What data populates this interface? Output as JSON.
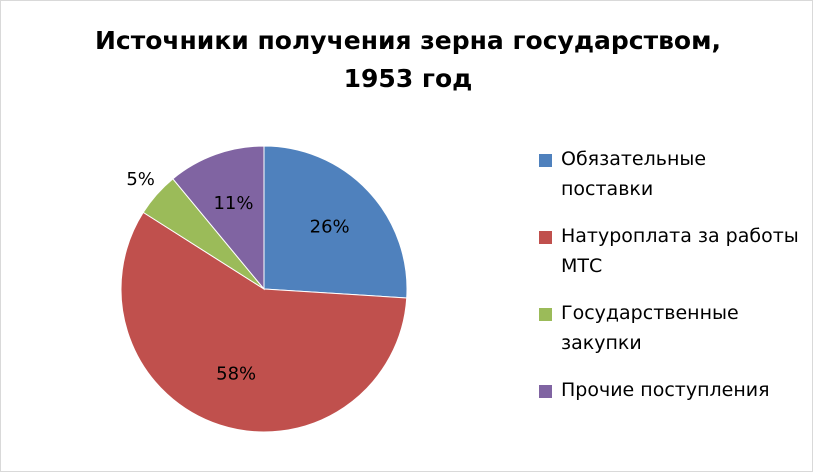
{
  "chart_data": {
    "type": "pie",
    "title": [
      "Источники получения зерна государством,",
      "1953 год"
    ],
    "categories": [
      "Обязательные поставки",
      "Натуроплата за работы МТС",
      "Государственные закупки",
      "Прочие поступления"
    ],
    "values": [
      26,
      58,
      5,
      11
    ],
    "value_labels": [
      "26%",
      "58%",
      "5%",
      "11%"
    ],
    "colors": [
      "#4f81bd",
      "#c0504d",
      "#9bbb59",
      "#8064a2"
    ],
    "legend": "right"
  }
}
